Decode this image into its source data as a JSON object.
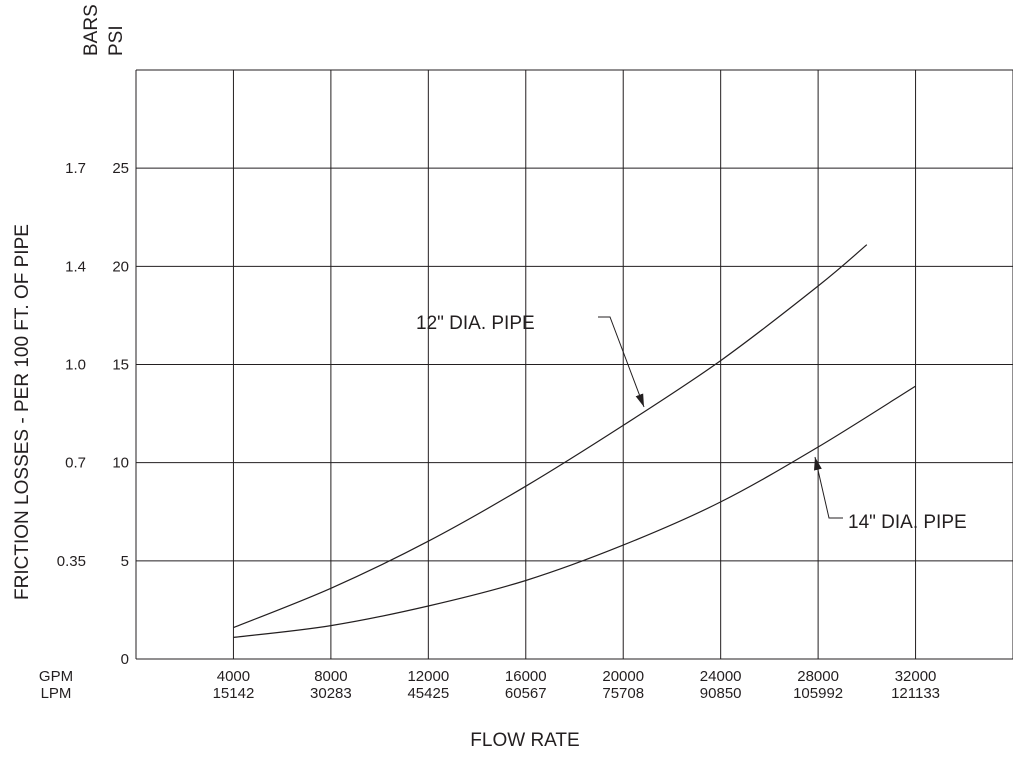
{
  "chart_data": {
    "type": "line",
    "xlabel": "FLOW RATE",
    "ylabel": "FRICTION LOSSES - PER 100 FT. OF PIPE",
    "x_unit_labels": [
      "GPM",
      "LPM"
    ],
    "y_unit_labels": [
      "BARS",
      "PSI"
    ],
    "x_ticks_gpm": [
      "4000",
      "8000",
      "12000",
      "16000",
      "20000",
      "24000",
      "28000",
      "32000"
    ],
    "x_ticks_lpm": [
      "15142",
      "30283",
      "45425",
      "60567",
      "75708",
      "90850",
      "105992",
      "121133"
    ],
    "y_ticks_psi": [
      "0",
      "5",
      "10",
      "15",
      "20",
      "25"
    ],
    "y_ticks_bars": [
      "",
      "0.35",
      "0.7",
      "1.0",
      "1.4",
      "1.7"
    ],
    "xlim": [
      0,
      36000
    ],
    "ylim": [
      0,
      30
    ],
    "grid": true,
    "series": [
      {
        "name": "12\" DIA. PIPE",
        "x": [
          4000,
          8000,
          12000,
          16000,
          20000,
          24000,
          28000,
          30000
        ],
        "y": [
          1.6,
          3.6,
          6.0,
          8.8,
          11.9,
          15.2,
          19.0,
          21.1
        ]
      },
      {
        "name": "14\" DIA. PIPE",
        "x": [
          4000,
          8000,
          12000,
          16000,
          20000,
          24000,
          28000,
          32000
        ],
        "y": [
          1.1,
          1.7,
          2.7,
          4.0,
          5.8,
          8.0,
          10.8,
          13.9
        ]
      }
    ]
  }
}
